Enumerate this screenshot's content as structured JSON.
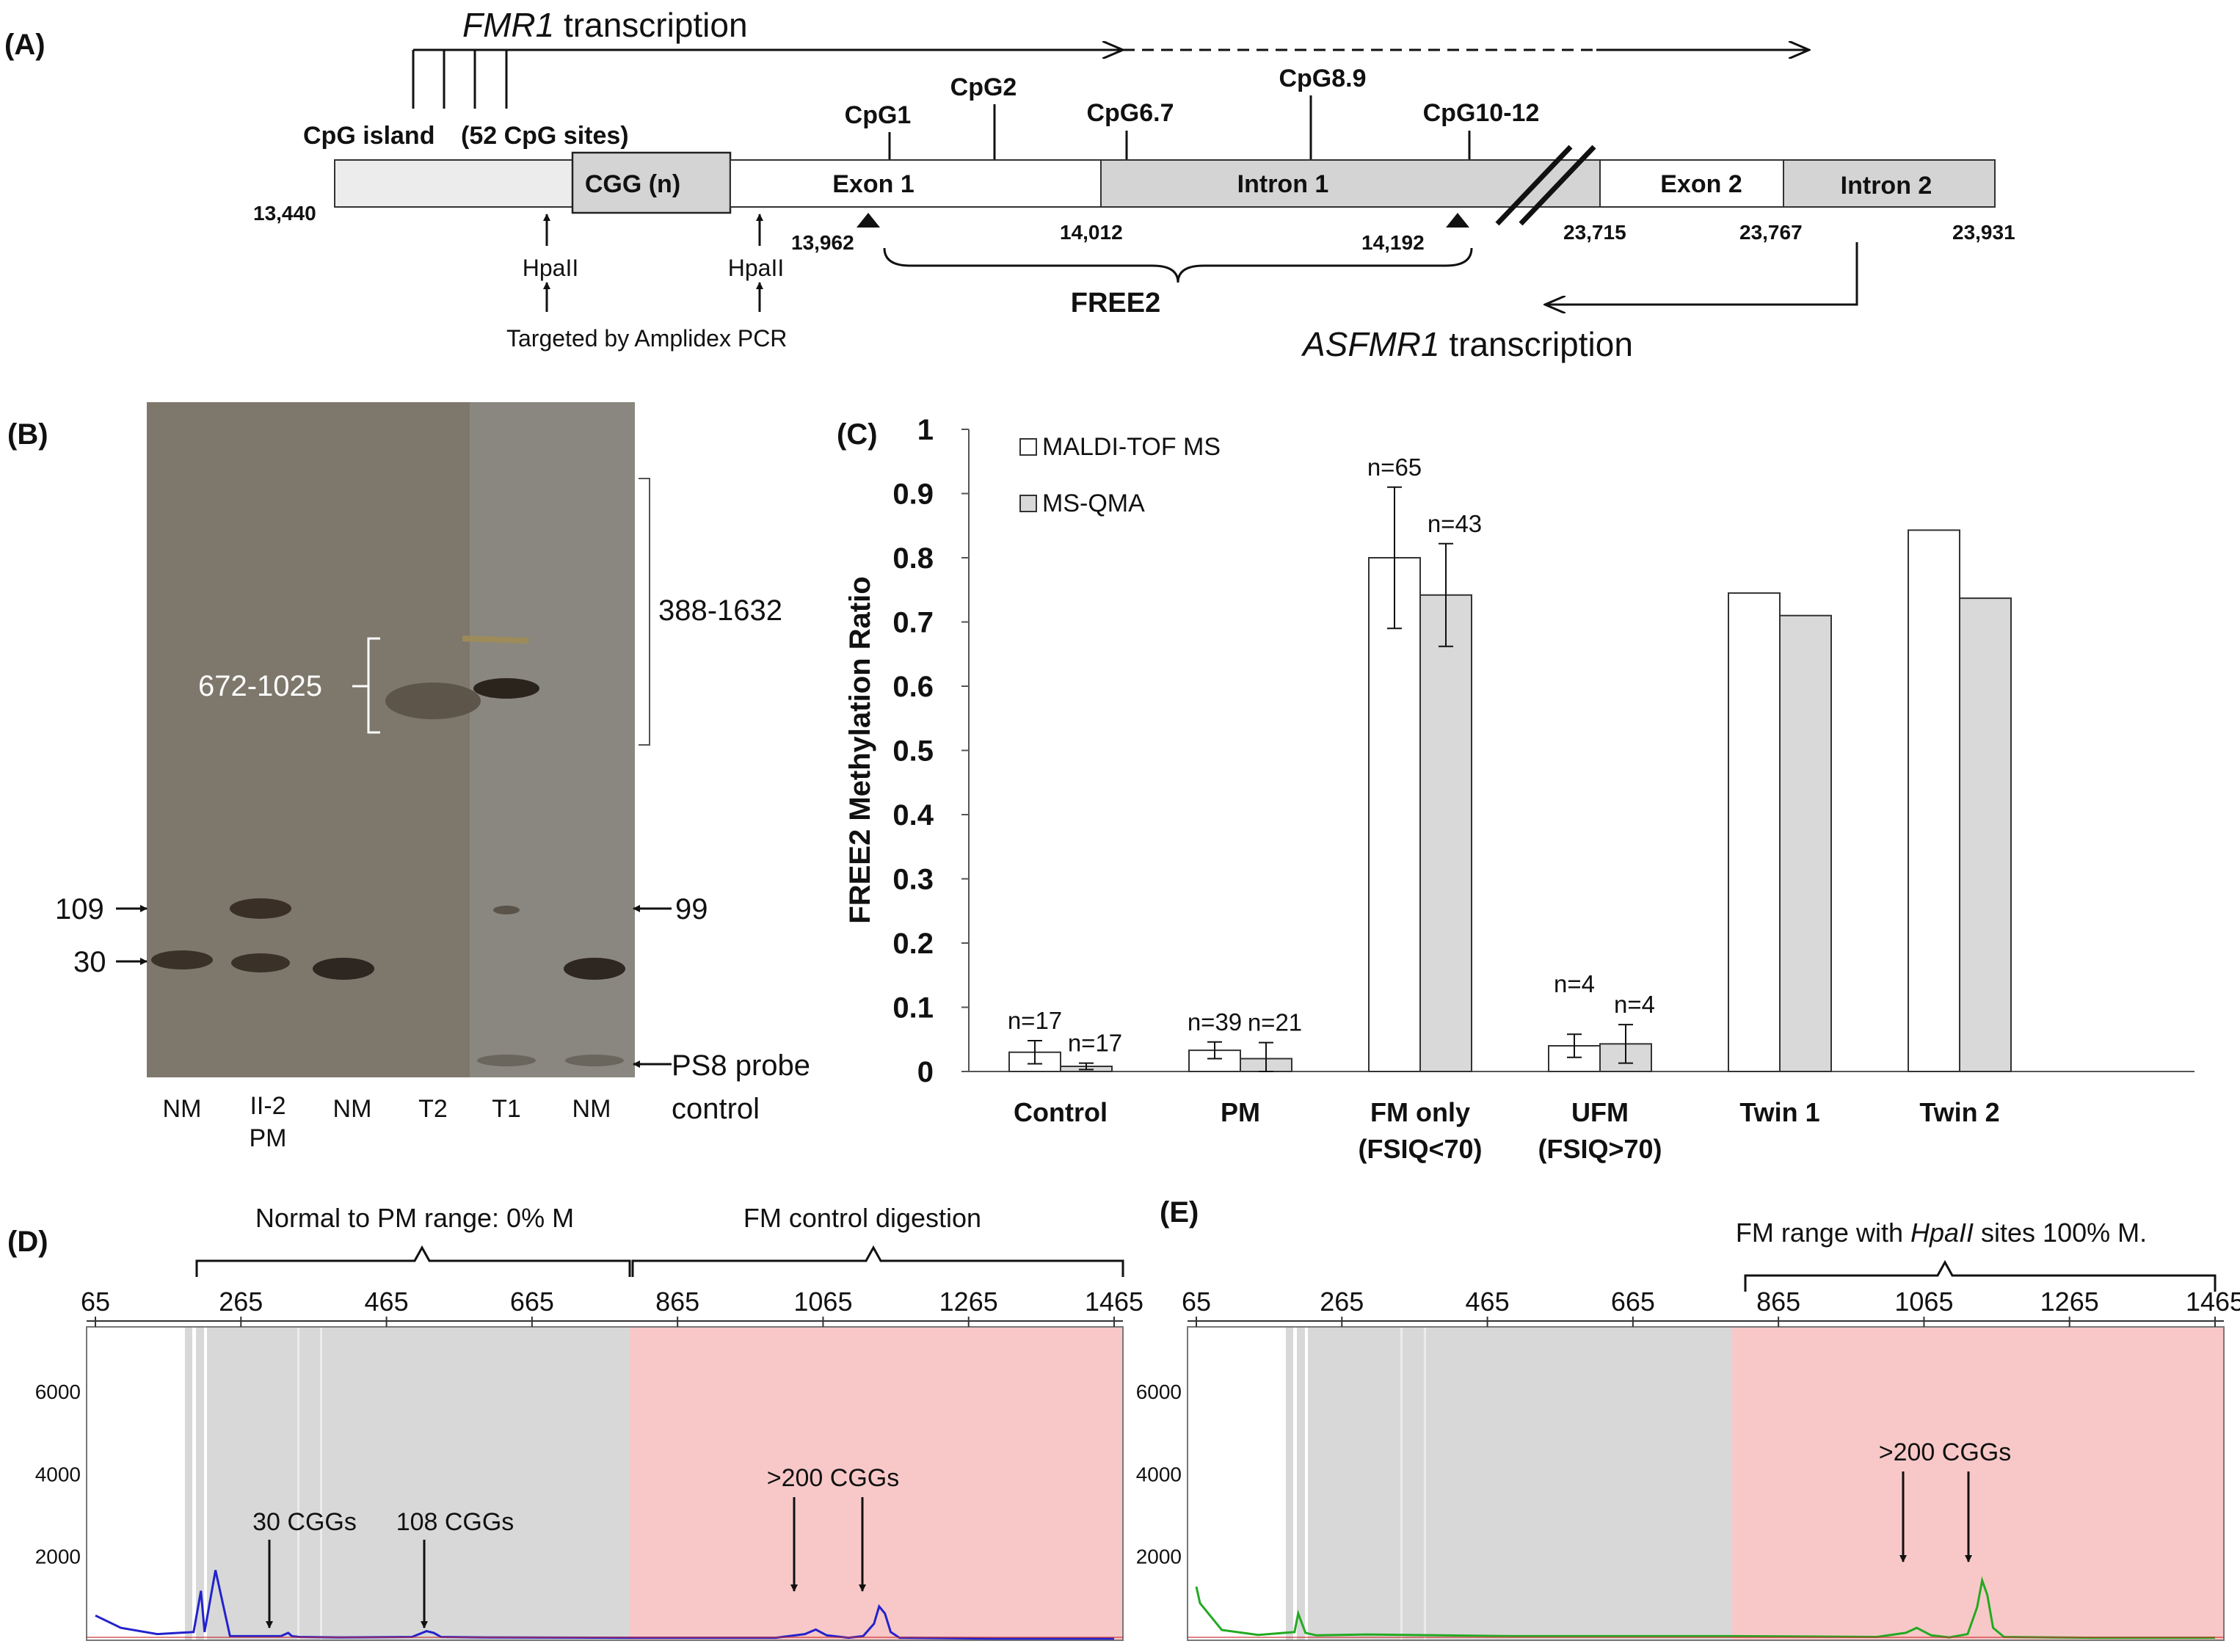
{
  "panel_labels": {
    "a": "(A)",
    "b": "(B)",
    "c": "(C)",
    "d": "(D)",
    "e": "(E)"
  },
  "panelA": {
    "fmr1_gene": "FMR1",
    "fmr1_suffix": " transcription",
    "cpg_island": "CpG island",
    "cpg_sites": "(52 CpG sites)",
    "cpg1": "CpG1",
    "cpg2": "CpG2",
    "cpg67": "CpG6.7",
    "cpg89": "CpG8.9",
    "cpg1012": "CpG10-12",
    "cgg": "CGG (n)",
    "exon1": "Exon 1",
    "intron1": "Intron 1",
    "exon2": "Exon 2",
    "intron2": "Intron 2",
    "pos_13440": "13,440",
    "pos_13962": "13,962",
    "pos_14012": "14,012",
    "pos_14192": "14,192",
    "pos_23715": "23,715",
    "pos_23767": "23,767",
    "pos_23931": "23,931",
    "hpa1": "HpaII",
    "hpa2": "HpaII",
    "amplidex": "Targeted by Amplidex PCR",
    "free2": "FREE2",
    "asfmr1_gene": "ASFMR1",
    "asfmr1_suffix": " transcription"
  },
  "panelB": {
    "range_top": "388-1632",
    "range_mid": "672-1025",
    "m109": "109",
    "m30": "30",
    "m99": "99",
    "probe1": "PS8 probe",
    "probe2": "control",
    "lanes": [
      "NM",
      "II-2",
      "NM",
      "T2",
      "T1",
      "NM"
    ],
    "lane2_sub": "PM"
  },
  "chart_data": [
    {
      "type": "bar",
      "panel": "C",
      "ylabel": "FREE2 Methylation Ratio",
      "ylim": [
        0,
        1
      ],
      "yticks": [
        "0",
        "0.1",
        "0.2",
        "0.3",
        "0.4",
        "0.5",
        "0.6",
        "0.7",
        "0.8",
        "0.9",
        "1"
      ],
      "categories": [
        "Control",
        "PM",
        "FM only",
        "UFM",
        "Twin 1",
        "Twin 2"
      ],
      "category_sublabels": [
        "",
        "",
        "(FSIQ<70)",
        "(FSIQ>70)",
        "",
        ""
      ],
      "series": [
        {
          "name": "MALDI-TOF MS",
          "color": "#ffffff",
          "values": [
            0.03,
            0.033,
            0.8,
            0.04,
            0.745,
            0.843
          ],
          "errors": [
            0.018,
            0.013,
            0.11,
            0.018,
            null,
            null
          ],
          "n_labels": [
            "n=17",
            "n=39",
            "n=65",
            "n=4",
            "",
            ""
          ]
        },
        {
          "name": "MS-QMA",
          "color": "#d9d9d9",
          "values": [
            0.008,
            0.02,
            0.742,
            0.043,
            0.71,
            0.737
          ],
          "errors": [
            0.005,
            0.025,
            0.08,
            0.03,
            null,
            null
          ],
          "n_labels": [
            "n=17",
            "n=21",
            "n=43",
            "n=4",
            "",
            ""
          ]
        }
      ]
    },
    {
      "type": "line",
      "panel": "D",
      "color": "#2222cc",
      "xlim": [
        65,
        1465
      ],
      "xticks": [
        "65",
        "265",
        "465",
        "665",
        "865",
        "1065",
        "1265",
        "1465"
      ],
      "ylim": [
        0,
        7600
      ],
      "yticks": [
        "2000",
        "4000",
        "6000"
      ],
      "x": [
        65,
        100,
        150,
        200,
        210,
        215,
        230,
        250,
        320,
        330,
        335,
        345,
        400,
        500,
        520,
        530,
        540,
        600,
        800,
        1000,
        1040,
        1055,
        1070,
        1100,
        1120,
        1135,
        1142,
        1150,
        1158,
        1170,
        1300,
        1465
      ],
      "y": [
        600,
        300,
        150,
        200,
        1200,
        200,
        1700,
        100,
        100,
        180,
        100,
        80,
        70,
        80,
        220,
        180,
        80,
        70,
        60,
        60,
        150,
        260,
        120,
        60,
        100,
        400,
        820,
        650,
        200,
        60,
        40,
        40
      ],
      "bracket_left": "Normal to PM range: 0% M",
      "bracket_right": "FM control digestion",
      "arrows": [
        "30 CGGs",
        "108 CGGs",
        ">200 CGGs"
      ]
    },
    {
      "type": "line",
      "panel": "E",
      "color": "#22aa22",
      "xlim": [
        65,
        1465
      ],
      "xticks": [
        "65",
        "265",
        "465",
        "665",
        "865",
        "1065",
        "1265",
        "1465"
      ],
      "ylim": [
        0,
        7600
      ],
      "yticks": [
        "2000",
        "4000",
        "6000"
      ],
      "x": [
        65,
        70,
        100,
        150,
        200,
        205,
        215,
        230,
        300,
        400,
        500,
        600,
        700,
        800,
        900,
        1000,
        1040,
        1055,
        1075,
        1100,
        1125,
        1138,
        1145,
        1152,
        1160,
        1175,
        1300,
        1465
      ],
      "y": [
        1300,
        900,
        250,
        130,
        200,
        650,
        180,
        120,
        140,
        120,
        100,
        100,
        100,
        100,
        90,
        80,
        180,
        300,
        120,
        70,
        150,
        800,
        1450,
        1100,
        300,
        80,
        60,
        60
      ],
      "bracket_right": "FM range with ",
      "bracket_right_ital": "HpaII",
      "bracket_right_tail": " sites 100% M.",
      "arrows": [
        ">200 CGGs"
      ]
    }
  ]
}
